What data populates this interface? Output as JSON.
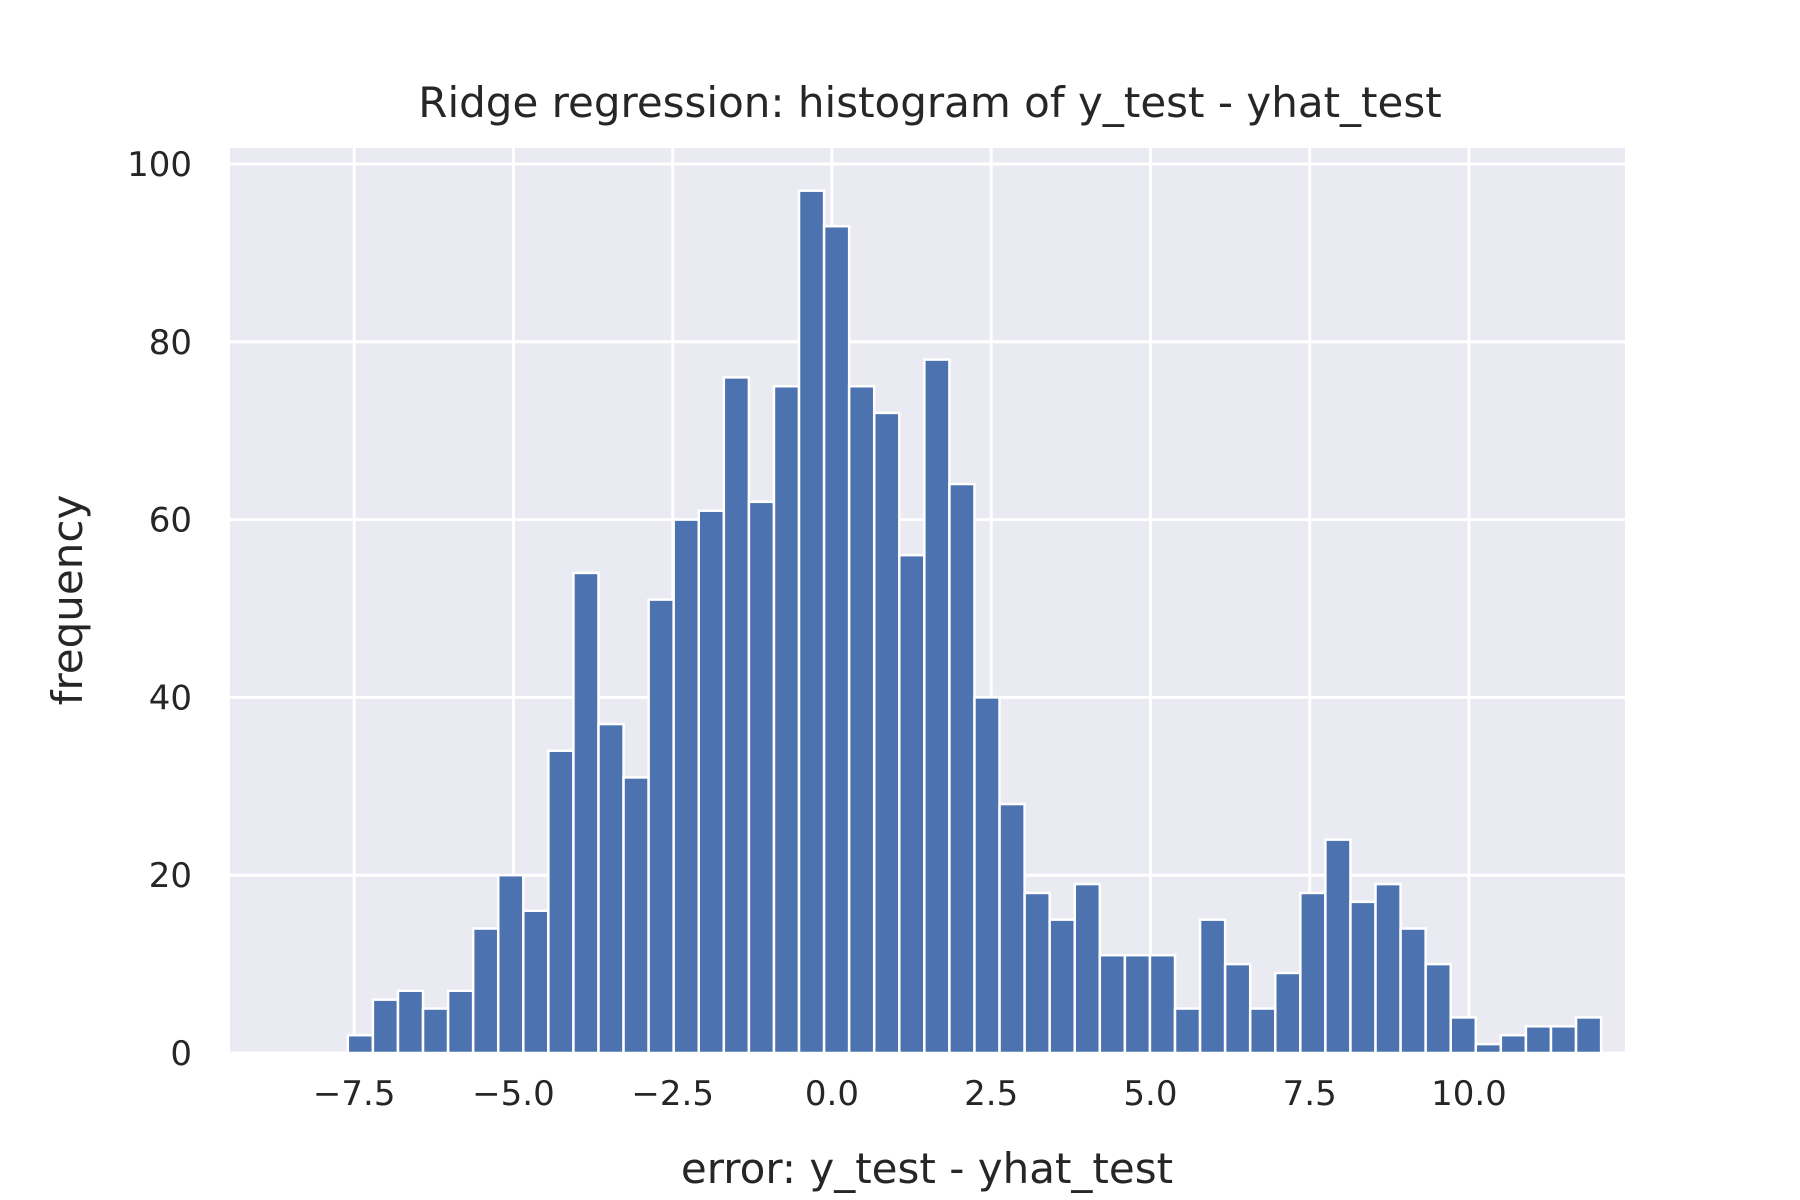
{
  "chart_data": {
    "type": "bar",
    "title": "Ridge regression: histogram of y_test - yhat_test",
    "xlabel": "error: y_test - yhat_test",
    "ylabel": "frequency",
    "xlim": [
      -9.45,
      12.45
    ],
    "ylim": [
      0,
      101.8
    ],
    "grid": true,
    "x_ticks": [
      -7.5,
      -5.0,
      -2.5,
      0.0,
      2.5,
      5.0,
      7.5,
      10.0
    ],
    "x_tick_labels": [
      "−7.5",
      "−5.0",
      "−2.5",
      "0.0",
      "2.5",
      "5.0",
      "7.5",
      "10.0"
    ],
    "y_ticks": [
      0,
      20,
      40,
      60,
      80,
      100
    ],
    "y_tick_labels": [
      "0",
      "20",
      "40",
      "60",
      "80",
      "100"
    ],
    "bin_start": -7.6,
    "bin_width": 0.3935,
    "values": [
      2,
      6,
      7,
      5,
      7,
      14,
      20,
      16,
      34,
      54,
      37,
      31,
      51,
      60,
      61,
      76,
      62,
      75,
      97,
      93,
      75,
      72,
      56,
      78,
      64,
      40,
      28,
      18,
      15,
      19,
      11,
      11,
      11,
      5,
      15,
      10,
      5,
      9,
      18,
      24,
      17,
      19,
      14,
      10,
      4,
      1,
      2,
      3,
      3,
      4
    ],
    "colors": {
      "bar": "#4c72b0",
      "background": "#eaeaf2",
      "grid": "#ffffff",
      "text": "#262626"
    }
  }
}
